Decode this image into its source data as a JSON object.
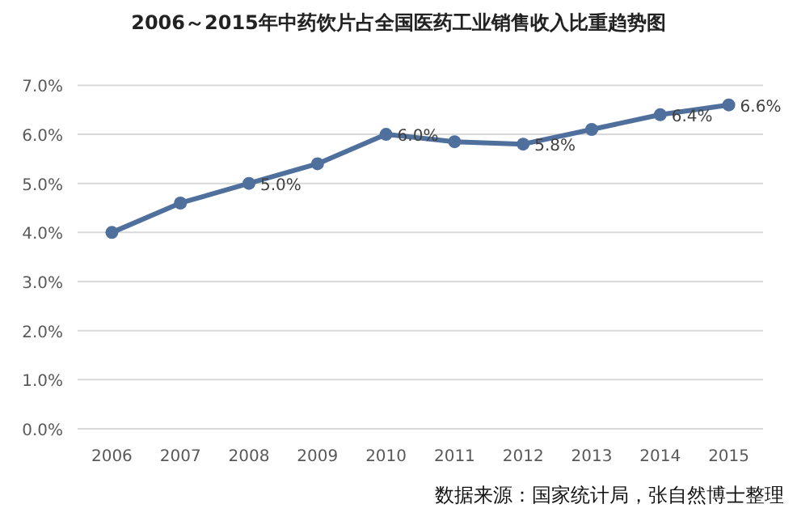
{
  "chart_data": {
    "type": "line",
    "title": "2006～2015年中药饮片占全国医药工业销售收入比重趋势图",
    "categories": [
      "2006",
      "2007",
      "2008",
      "2009",
      "2010",
      "2011",
      "2012",
      "2013",
      "2014",
      "2015"
    ],
    "values": [
      4.0,
      4.6,
      5.0,
      5.4,
      6.0,
      5.85,
      5.8,
      6.1,
      6.4,
      6.6
    ],
    "value_labels": [
      null,
      null,
      "5.0%",
      null,
      "6.0%",
      null,
      "5.8%",
      null,
      "6.4%",
      "6.6%"
    ],
    "color": "#4f6f9c",
    "marker": "circle",
    "grid": "y",
    "ylim": [
      0,
      7
    ],
    "yticks": [
      {
        "value": 0,
        "label": "0.0%"
      },
      {
        "value": 1,
        "label": "1.0%"
      },
      {
        "value": 2,
        "label": "2.0%"
      },
      {
        "value": 3,
        "label": "3.0%"
      },
      {
        "value": 4,
        "label": "4.0%"
      },
      {
        "value": 5,
        "label": "5.0%"
      },
      {
        "value": 6,
        "label": "6.0%"
      },
      {
        "value": 7,
        "label": "7.0%"
      }
    ],
    "annotations": [
      "数据来源：国家统计局，张自然博士整理"
    ]
  }
}
